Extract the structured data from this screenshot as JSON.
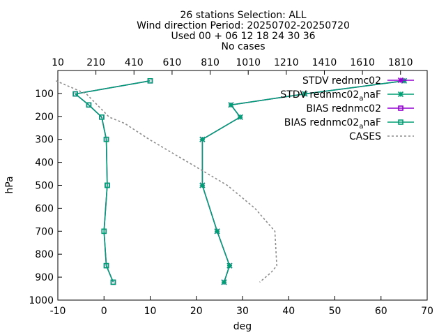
{
  "chart_data": {
    "type": "line",
    "title_lines": [
      "26 stations Selection: ALL",
      "Wind direction  Period: 20250702-20250720",
      "Used 00 + 06 12 18 24 30 36",
      "No cases"
    ],
    "xlabel": "deg",
    "ylabel": "hPa",
    "xlim": [
      -10,
      70
    ],
    "ylim": [
      1000,
      0
    ],
    "x_ticks": [
      "-10",
      "0",
      "10",
      "20",
      "30",
      "40",
      "50",
      "60",
      "70"
    ],
    "y_ticks": [
      "100",
      "200",
      "300",
      "400",
      "500",
      "600",
      "700",
      "800",
      "900",
      "1000"
    ],
    "x2_ticks": [
      "10",
      "210",
      "410",
      "610",
      "810",
      "1010",
      "1210",
      "1410",
      "1610",
      "1810"
    ],
    "x2lim": [
      10,
      1950
    ],
    "grid": false,
    "legend_position": "top-right",
    "series": [
      {
        "name": "STDV rednmc02",
        "color": "#9400d3",
        "marker": "star",
        "dash": "solid",
        "points": [
          [
            65,
            45
          ],
          [
            43.5,
            102
          ],
          [
            27.5,
            150
          ],
          [
            29.5,
            203
          ],
          [
            21.3,
            300
          ],
          [
            21.3,
            500
          ],
          [
            24.5,
            700
          ],
          [
            27.2,
            850
          ],
          [
            26,
            922
          ]
        ]
      },
      {
        "name": "STDV rednmc02_a_naF",
        "color": "#009e73",
        "marker": "star",
        "dash": "solid",
        "points": [
          [
            65,
            45
          ],
          [
            43.5,
            102
          ],
          [
            27.5,
            150
          ],
          [
            29.5,
            203
          ],
          [
            21.3,
            300
          ],
          [
            21.3,
            500
          ],
          [
            24.5,
            700
          ],
          [
            27.2,
            850
          ],
          [
            26,
            922
          ]
        ]
      },
      {
        "name": "BIAS rednmc02",
        "color": "#9400d3",
        "marker": "square",
        "dash": "solid",
        "points": [
          [
            10,
            45
          ],
          [
            -6.2,
            102
          ],
          [
            -3.3,
            150
          ],
          [
            -0.5,
            203
          ],
          [
            0.5,
            300
          ],
          [
            0.7,
            500
          ],
          [
            0,
            700
          ],
          [
            0.5,
            850
          ],
          [
            2,
            922
          ]
        ]
      },
      {
        "name": "BIAS rednmc02_a_naF",
        "color": "#009e73",
        "marker": "square",
        "dash": "solid",
        "points": [
          [
            10,
            45
          ],
          [
            -6.2,
            102
          ],
          [
            -3.3,
            150
          ],
          [
            -0.5,
            203
          ],
          [
            0.5,
            300
          ],
          [
            0.7,
            500
          ],
          [
            0.7,
            500
          ],
          [
            0,
            700
          ],
          [
            0.5,
            850
          ],
          [
            2,
            922
          ]
        ]
      },
      {
        "name": "CASES",
        "color": "#8c8c8c",
        "marker": "none",
        "dash": "dashed",
        "axis": "x2",
        "points": [
          [
            0,
            45
          ],
          [
            160,
            102
          ],
          [
            280,
            203
          ],
          [
            360,
            230
          ],
          [
            490,
            300
          ],
          [
            900,
            500
          ],
          [
            1045,
            600
          ],
          [
            1150,
            700
          ],
          [
            1160,
            850
          ],
          [
            1130,
            880
          ],
          [
            1070,
            922
          ]
        ]
      }
    ]
  }
}
